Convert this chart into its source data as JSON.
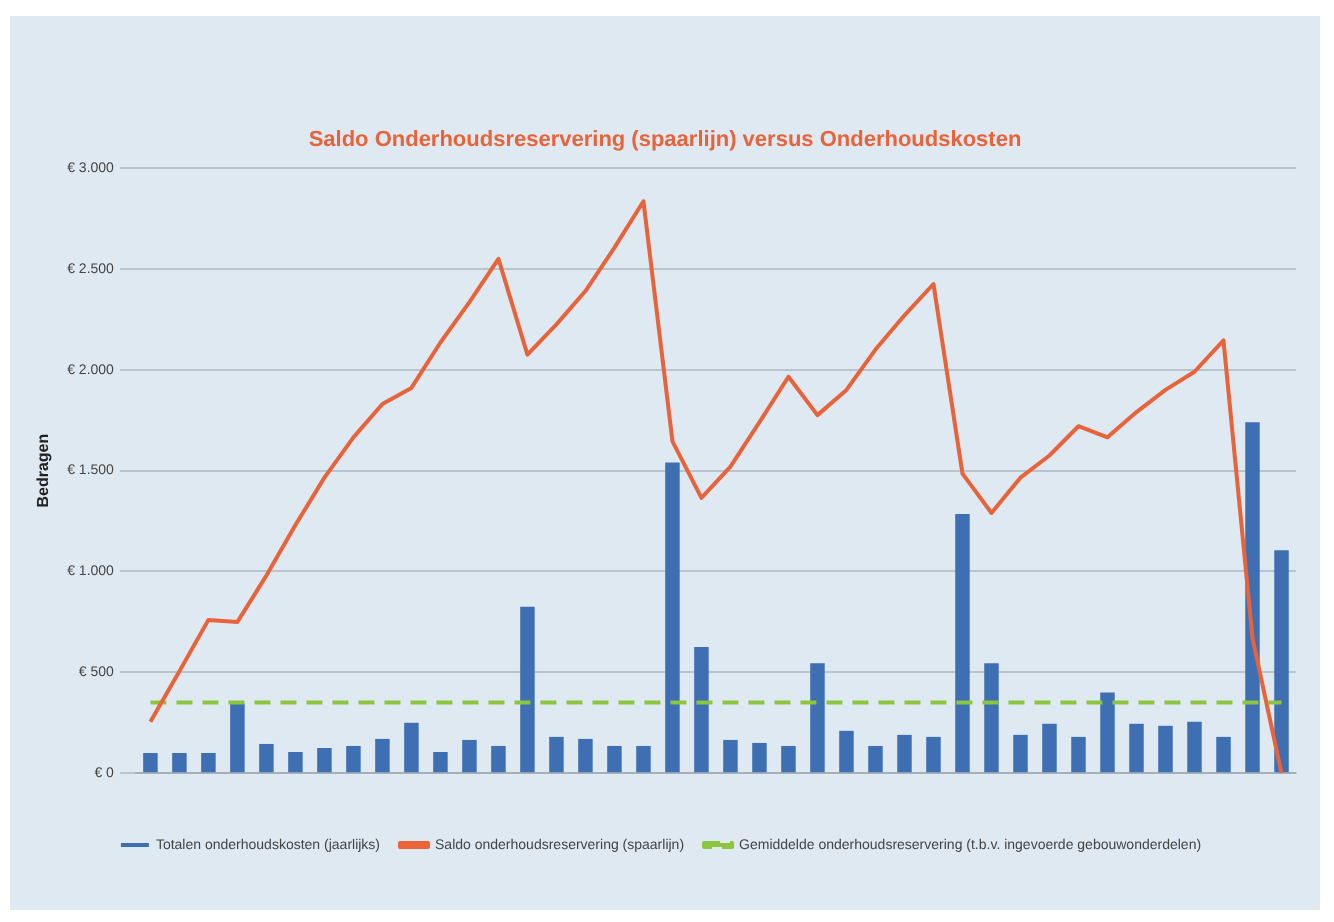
{
  "chart_data": {
    "type": "bar",
    "title": "Saldo Onderhoudsreservering (spaarlijn) versus Onderhoudskosten",
    "ylabel": "Bedragen",
    "categories": [
      null,
      null,
      null,
      null,
      null,
      null,
      null,
      null,
      null,
      null,
      null,
      null,
      null,
      null,
      null,
      null,
      null,
      null,
      null,
      null,
      null,
      null,
      null,
      null,
      null,
      null,
      null,
      null,
      null,
      null,
      null,
      null,
      null,
      null,
      null,
      null,
      null,
      null,
      null,
      null
    ],
    "series": [
      {
        "name": "Totalen onderhoudskosten (jaarlijks)",
        "color": "#3f6fb3",
        "values": [
          100,
          100,
          100,
          345,
          145,
          105,
          125,
          135,
          170,
          250,
          105,
          165,
          135,
          825,
          180,
          170,
          135,
          135,
          1540,
          625,
          165,
          150,
          135,
          545,
          210,
          135,
          190,
          180,
          1285,
          545,
          190,
          245,
          180,
          400,
          245,
          235,
          255,
          180,
          1740,
          1105
        ]
      },
      {
        "name": "Saldo onderhoudsreservering (spaarlijn)",
        "type": "line",
        "color": "#e8623a",
        "line_style": "solid",
        "values": [
          255,
          505,
          760,
          750,
          980,
          1230,
          1465,
          1665,
          1830,
          1910,
          2135,
          2335,
          2550,
          2075,
          2225,
          2390,
          2605,
          2835,
          1645,
          1365,
          1520,
          1740,
          1965,
          1775,
          1900,
          2100,
          2270,
          2425,
          1485,
          1290,
          1465,
          1575,
          1720,
          1665,
          1790,
          1900,
          1990,
          2145,
          670,
          0
        ]
      },
      {
        "name": "Gemiddelde onderhoudsreservering (t.b.v. ingevoerde gebouwonderdelen)",
        "type": "line",
        "color": "#8cc63f",
        "line_style": "dashed",
        "values": [
          350,
          350,
          350,
          350,
          350,
          350,
          350,
          350,
          350,
          350,
          350,
          350,
          350,
          350,
          350,
          350,
          350,
          350,
          350,
          350,
          350,
          350,
          350,
          350,
          350,
          350,
          350,
          350,
          350,
          350,
          350,
          350,
          350,
          350,
          350,
          350,
          350,
          350,
          350,
          350
        ]
      }
    ],
    "ylim": [
      0,
      3000
    ],
    "yticks": [
      {
        "value": 0,
        "label": "€ 0"
      },
      {
        "value": 500,
        "label": "€ 500"
      },
      {
        "value": 1000,
        "label": "€ 1.000"
      },
      {
        "value": 1500,
        "label": "€ 1.500"
      },
      {
        "value": 2000,
        "label": "€ 2.000"
      },
      {
        "value": 2500,
        "label": "€ 2.500"
      },
      {
        "value": 3000,
        "label": "€ 3.000"
      }
    ],
    "grid": "y",
    "legend": "bottom",
    "marker": "none"
  }
}
